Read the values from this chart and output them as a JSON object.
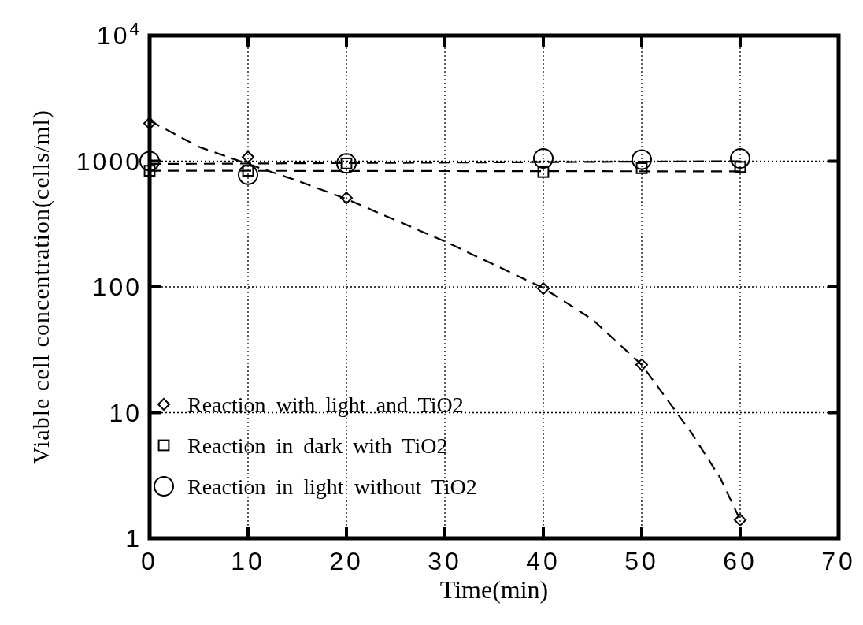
{
  "chart_data": {
    "type": "scatter",
    "xlabel": "Time(min)",
    "ylabel": "Viable cell concentration(cells/ml)",
    "xlim": [
      0,
      70
    ],
    "xticks": [
      0,
      10,
      20,
      30,
      40,
      50,
      60,
      70
    ],
    "ylim": [
      1,
      10000
    ],
    "yticks": [
      1,
      10,
      100,
      1000,
      {
        "value": 10000,
        "label": "10$^{4}$"
      }
    ],
    "log": "y",
    "grid": true,
    "legend": "bottom left",
    "series": [
      {
        "name": "Reaction with light and TiO2",
        "color": "#000000",
        "marker": "diamond",
        "x": [
          0,
          10,
          20,
          40,
          50,
          60
        ],
        "values": [
          2000,
          1080,
          510,
          97,
          24,
          1.4
        ]
      },
      {
        "name": "Reaction in dark with TiO2",
        "color": "#000000",
        "marker": "square",
        "x": [
          0,
          10,
          20,
          40,
          50,
          60
        ],
        "values": [
          840,
          840,
          960,
          820,
          880,
          900
        ]
      },
      {
        "name": "Reaction in light without TiO2",
        "color": "#000000",
        "marker": "circle",
        "x": [
          0,
          10,
          20,
          40,
          50,
          60
        ],
        "values": [
          1000,
          780,
          960,
          1050,
          1030,
          1050
        ]
      },
      {
        "type": "line",
        "color": "#000000",
        "line_style": "dashed",
        "x": [
          0,
          5,
          10,
          15,
          20,
          30,
          40,
          45,
          50,
          55,
          58,
          60
        ],
        "values": [
          2100,
          1300,
          950,
          700,
          500,
          230,
          98,
          55,
          24,
          7,
          3,
          1.4
        ]
      },
      {
        "type": "line",
        "color": "#000000",
        "line_style": "dashed",
        "x": [
          0,
          60
        ],
        "values": [
          840,
          830
        ]
      },
      {
        "type": "line",
        "color": "#000000",
        "line_style": "dashed",
        "x": [
          0,
          60
        ],
        "values": [
          950,
          1000
        ]
      }
    ]
  }
}
